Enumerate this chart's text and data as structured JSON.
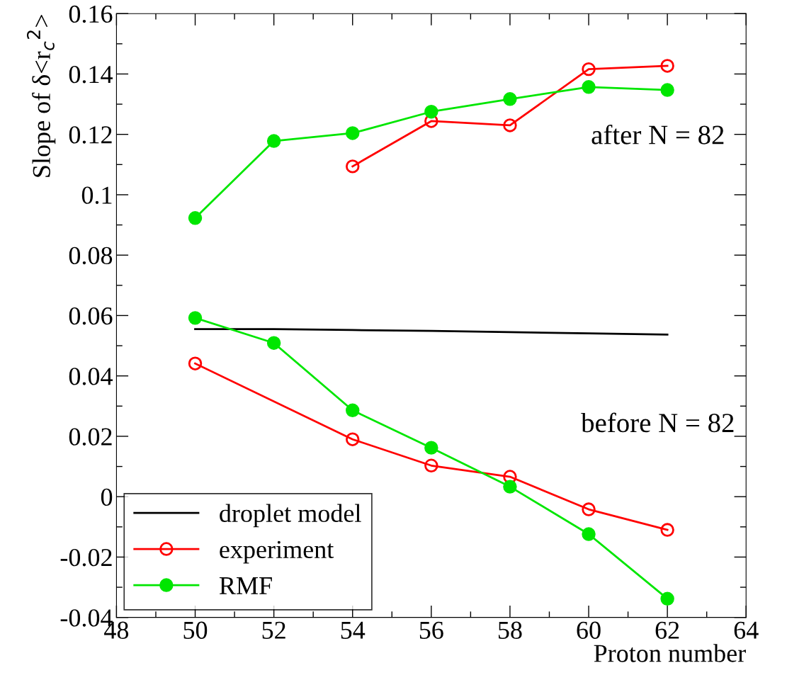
{
  "chart_data": {
    "type": "line",
    "xlabel": "Proton number",
    "ylabel": "Slope of δ<r$_{c}$$^{2}$>",
    "xlim": [
      48,
      64
    ],
    "xticks": [
      48,
      50,
      52,
      54,
      56,
      58,
      60,
      62,
      64
    ],
    "ylim": [
      -0.04,
      0.16
    ],
    "yticks": [
      -0.04,
      -0.02,
      0,
      0.02,
      0.04,
      0.06,
      0.08,
      0.1,
      0.12,
      0.14,
      0.16
    ],
    "grid": false,
    "legend": "bottom left",
    "series": [
      {
        "name": "droplet model",
        "color": "#000000",
        "marker": "none",
        "x": [
          50,
          52,
          54,
          56,
          58,
          60,
          62
        ],
        "values": [
          0.0555,
          0.0555,
          0.0552,
          0.0549,
          0.0545,
          0.0541,
          0.0537
        ]
      },
      {
        "name": "experiment",
        "color": "#ff0000",
        "marker": "circle",
        "x": [
          50,
          54,
          56,
          58,
          60,
          62
        ],
        "values": [
          0.0441,
          0.019,
          0.0103,
          0.0066,
          -0.0042,
          -0.011
        ]
      },
      {
        "name": "RMF",
        "color": "#00e600",
        "marker": "circle",
        "x": [
          50,
          52,
          54,
          56,
          58,
          60,
          62
        ],
        "values": [
          0.0592,
          0.0509,
          0.0286,
          0.0162,
          0.0033,
          -0.0124,
          -0.0338
        ]
      },
      {
        "color": "#ff0000",
        "marker": "circle",
        "x": [
          54,
          56,
          58,
          60,
          62
        ],
        "values": [
          0.1094,
          0.1244,
          0.123,
          0.1416,
          0.1427
        ]
      },
      {
        "color": "#00e600",
        "marker": "circle",
        "x": [
          50,
          52,
          54,
          56,
          58,
          60,
          62
        ],
        "values": [
          0.0923,
          0.1178,
          0.1204,
          0.1275,
          0.1317,
          0.1357,
          0.1347
        ]
      }
    ],
    "annotations": [
      "after N = 82",
      "before N = 82"
    ]
  }
}
